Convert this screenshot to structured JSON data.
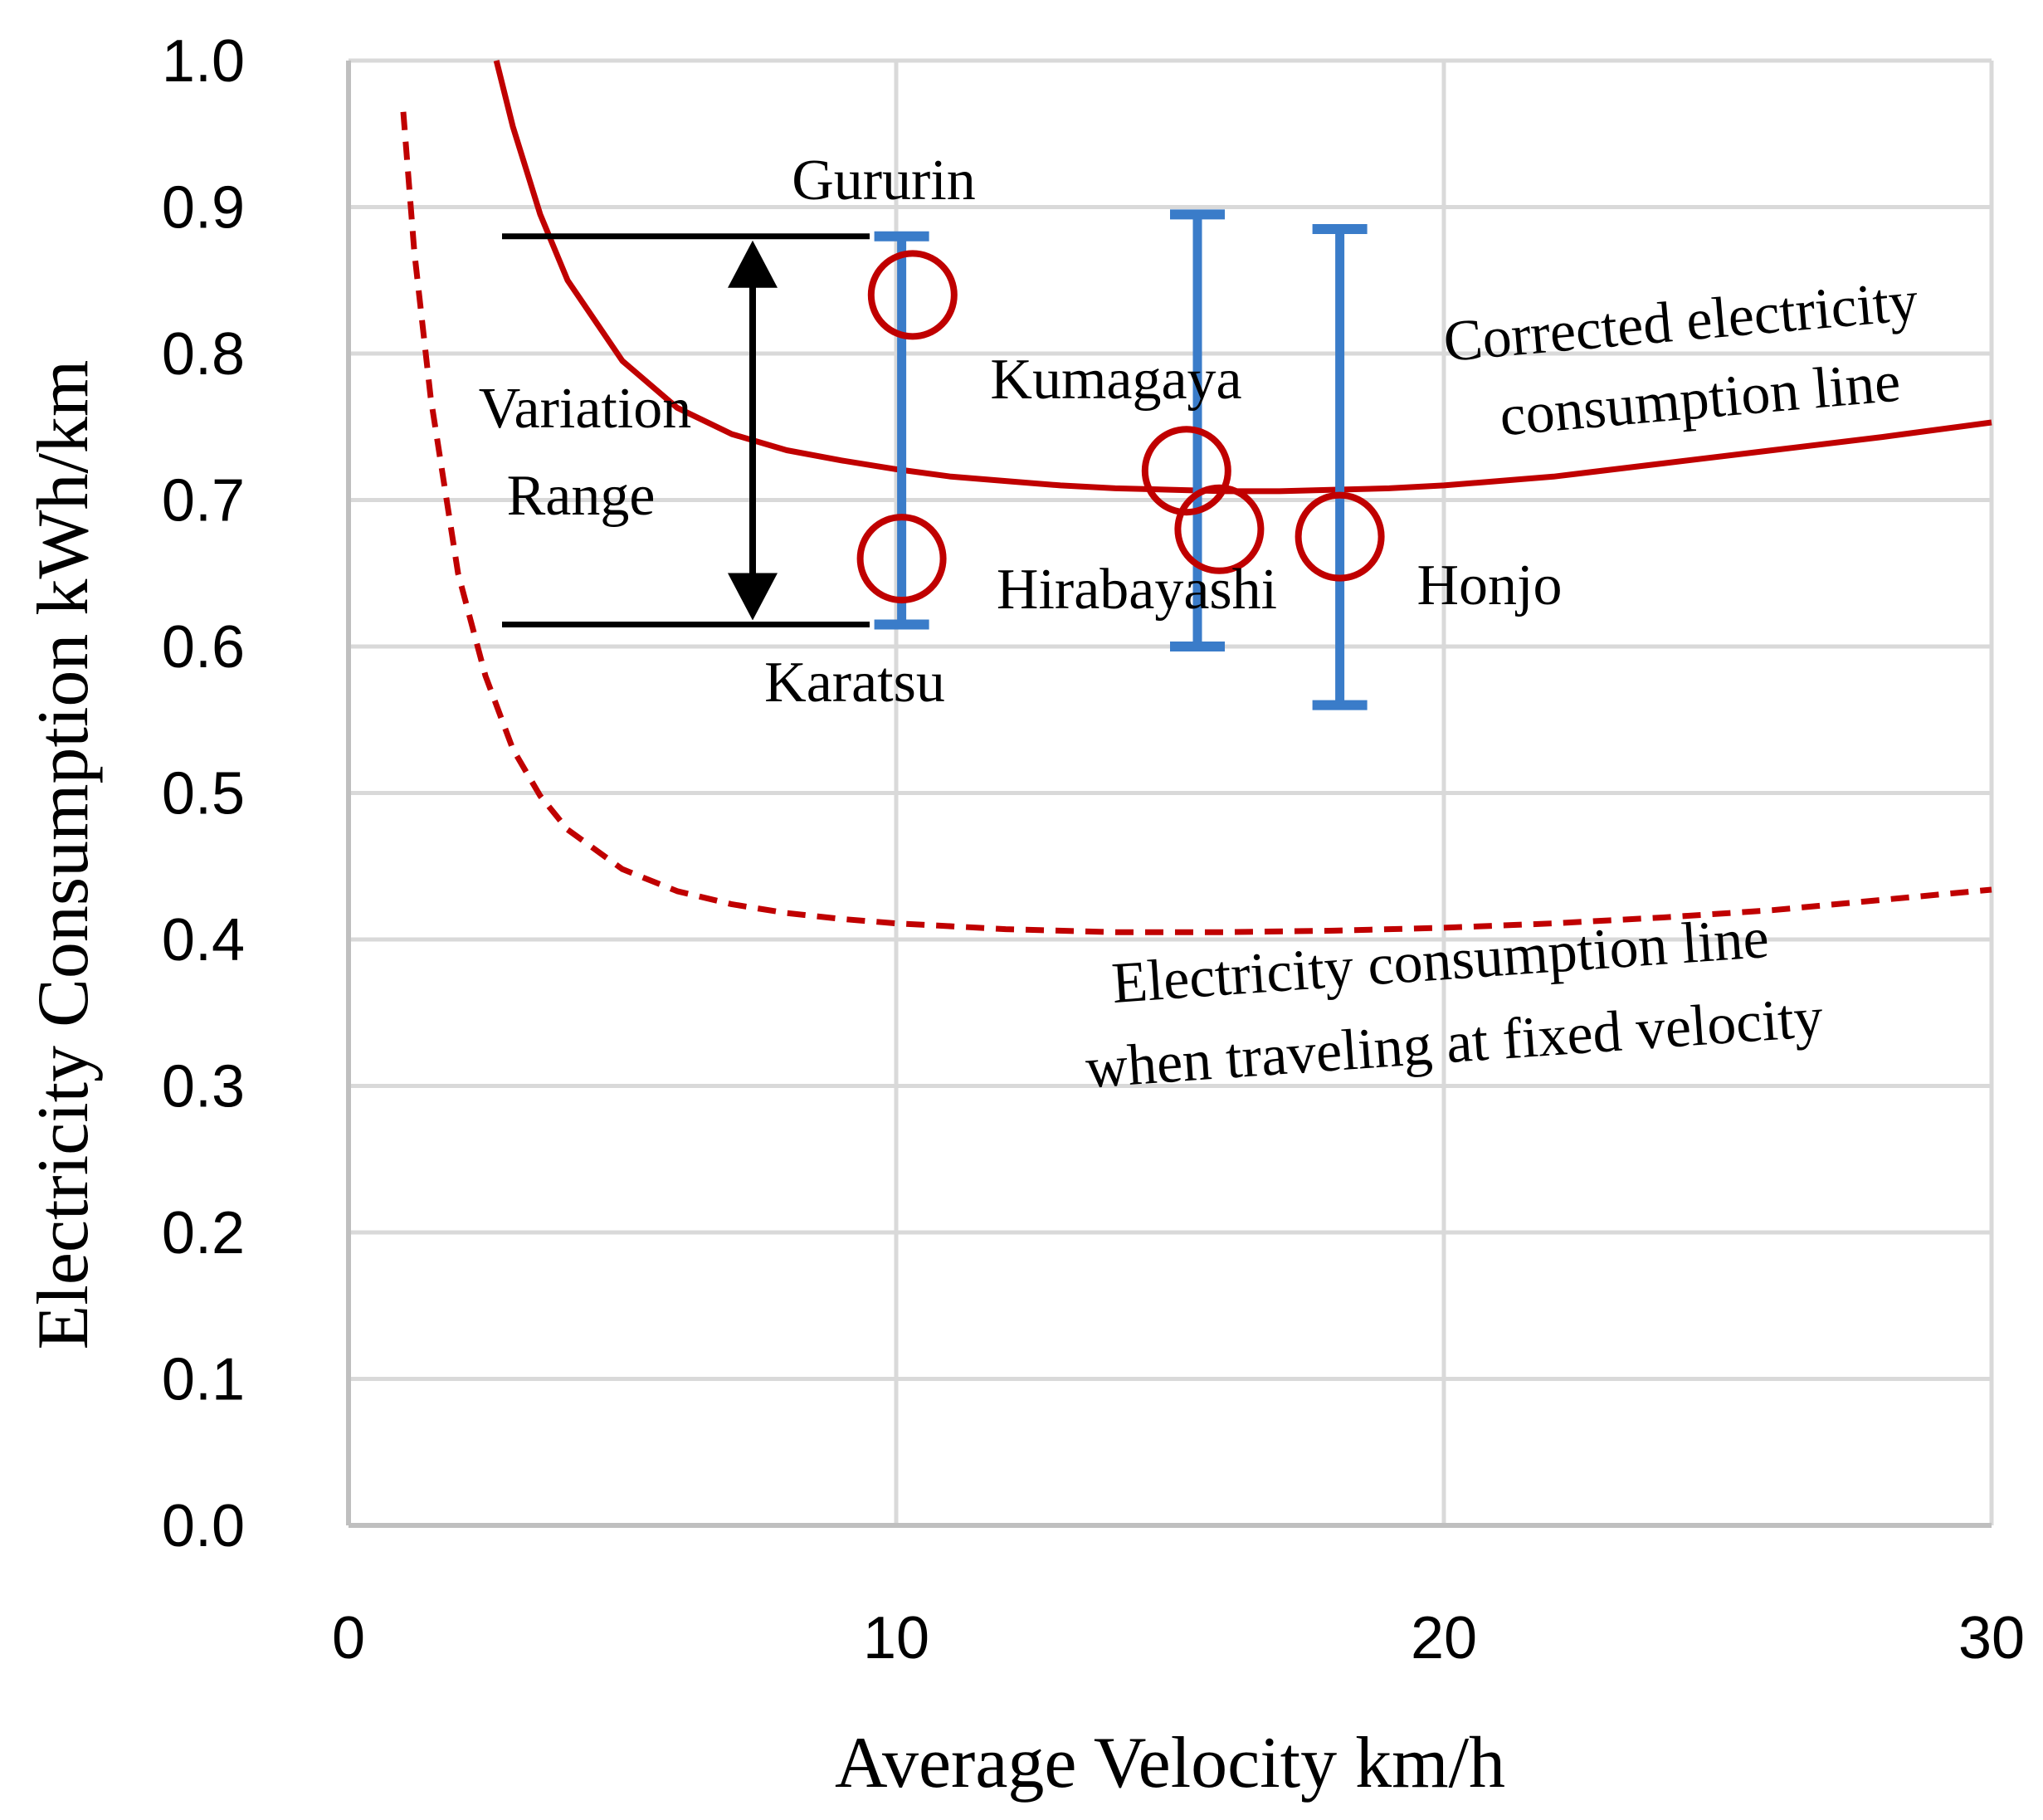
{
  "chart_data": {
    "type": "scatter",
    "xlabel": "Average Velocity  km/h",
    "ylabel": "Electricity Consumption  kWh/km",
    "xlim": [
      0,
      30
    ],
    "ylim": [
      0,
      1.0
    ],
    "x_ticks": [
      "0",
      "10",
      "20",
      "30"
    ],
    "y_ticks": [
      "0.0",
      "0.1",
      "0.2",
      "0.3",
      "0.4",
      "0.5",
      "0.6",
      "0.7",
      "0.8",
      "0.9",
      "1.0"
    ],
    "grid": true,
    "points": [
      {
        "name": "Gururin",
        "x": 10.3,
        "y": 0.84,
        "err_low": 0.615,
        "err_high": 0.88
      },
      {
        "name": "Karatsu",
        "x": 10.1,
        "y": 0.66,
        "err_low": 0.615,
        "err_high": 0.88
      },
      {
        "name": "Kumagaya",
        "x": 15.3,
        "y": 0.72,
        "err_low": 0.6,
        "err_high": 0.895
      },
      {
        "name": "Hirabayashi",
        "x": 15.9,
        "y": 0.68,
        "err_low": 0.6,
        "err_high": 0.895
      },
      {
        "name": "Honjo",
        "x": 18.1,
        "y": 0.675,
        "err_low": 0.56,
        "err_high": 0.885
      }
    ],
    "series": [
      {
        "name": "Corrected electricity consumption line",
        "style": "solid",
        "x": [
          2.7,
          3,
          3.5,
          4,
          5,
          6,
          7,
          8,
          9,
          10,
          11,
          12,
          13,
          14,
          15,
          16,
          17,
          18,
          19,
          20,
          22,
          24,
          26,
          28,
          30
        ],
        "y": [
          1.0,
          0.955,
          0.895,
          0.85,
          0.795,
          0.763,
          0.745,
          0.734,
          0.727,
          0.721,
          0.716,
          0.713,
          0.71,
          0.708,
          0.707,
          0.706,
          0.706,
          0.707,
          0.708,
          0.71,
          0.716,
          0.725,
          0.734,
          0.743,
          0.753
        ]
      },
      {
        "name": "Electricity consumption line when traveling at fixed velocity",
        "style": "dashed",
        "x": [
          1.0,
          1.2,
          1.5,
          2,
          2.5,
          3,
          3.5,
          4,
          5,
          6,
          7,
          8,
          9,
          10,
          12,
          14,
          16,
          18,
          20,
          22,
          24,
          26,
          28,
          30
        ],
        "y": [
          0.965,
          0.87,
          0.77,
          0.65,
          0.58,
          0.53,
          0.498,
          0.475,
          0.448,
          0.433,
          0.424,
          0.418,
          0.414,
          0.411,
          0.407,
          0.405,
          0.405,
          0.406,
          0.408,
          0.411,
          0.415,
          0.42,
          0.427,
          0.434
        ]
      }
    ],
    "variation_range": {
      "label_line1": "Variation",
      "label_line2": "Range",
      "y_low": 0.615,
      "y_high": 0.88
    },
    "annotations": {
      "corrected_line1": "Corrected electricity",
      "corrected_line2": "consumption line",
      "fixed_line1": "Electricity consumption line",
      "fixed_line2": "when traveling at fixed velocity"
    },
    "colors": {
      "curve": "#c00000",
      "errorbar": "#3a7cc9",
      "grid": "#d9d9d9",
      "axis": "#bfbfbf",
      "arrow": "#000000"
    }
  }
}
